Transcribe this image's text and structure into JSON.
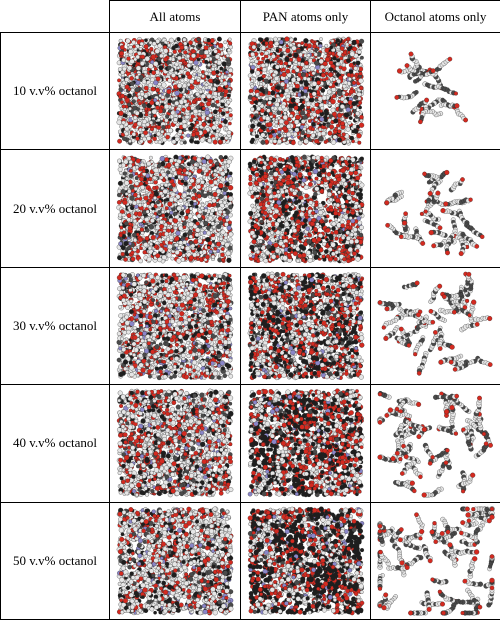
{
  "table": {
    "columns": [
      "",
      "All atoms",
      "PAN atoms only",
      "Octanol atoms only"
    ],
    "rows": [
      {
        "label": "10 v.v% octanol",
        "fraction": 0.1
      },
      {
        "label": "20 v.v% octanol",
        "fraction": 0.2
      },
      {
        "label": "30 v.v% octanol",
        "fraction": 0.3
      },
      {
        "label": "40 v.v% octanol",
        "fraction": 0.4
      },
      {
        "label": "50 v.v% octanol",
        "fraction": 0.5
      }
    ]
  },
  "colors": {
    "oxygen": "#d42a20",
    "hydrogen": "#e6e6e6",
    "carbon": "#4a4a4a",
    "nitrogen": "#8a86c8",
    "dark": "#1e1e1e"
  }
}
